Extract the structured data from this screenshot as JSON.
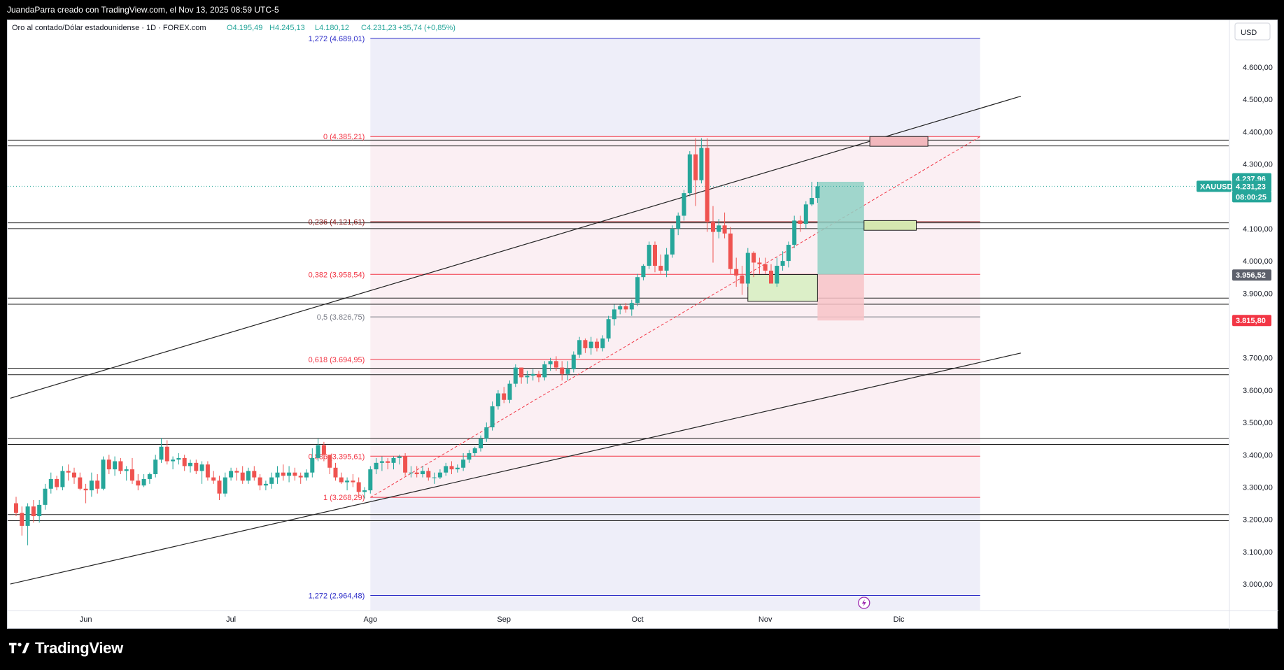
{
  "header": {
    "author_line": "JuandaParra creado con TradingView.com, el Nov 13, 2025 08:59 UTC-5"
  },
  "brand": {
    "name": "TradingView",
    "logo_icon": "tradingview-logo-icon"
  },
  "colors": {
    "up": "#26a69a",
    "down": "#ef5350",
    "fib_red": "#f23645",
    "fib_gray": "#787b86",
    "fib_blue": "#2e2ec8",
    "trend": "#222222",
    "zone_green_fill": "#dcefc8",
    "zone_red_fill": "#f2b8bd",
    "long_target": "#8fd1c4",
    "long_stop": "#f7c3c7"
  },
  "chart_data": {
    "type": "candlestick",
    "symbol": "XAUUSD",
    "legend": {
      "name": "Oro al contado/Dólar estadounidense · 1D · FOREX.com",
      "open": "O4.195,49",
      "high": "H4.245,13",
      "low": "L4.180,12",
      "close": "C4.231,23",
      "change": "+35,74 (+0,85%)"
    },
    "currency": "USD",
    "y_axis": {
      "range": [
        2920,
        4745
      ],
      "ticks": [
        "4.600,00",
        "4.500,00",
        "4.400,00",
        "4.300,00",
        "4.100,00",
        "4.000,00",
        "3.900,00",
        "3.700,00",
        "3.600,00",
        "3.500,00",
        "3.400,00",
        "3.300,00",
        "3.200,00",
        "3.100,00",
        "3.000,00"
      ],
      "tick_values": [
        4600,
        4500,
        4400,
        4300,
        4100,
        4000,
        3900,
        3700,
        3600,
        3500,
        3400,
        3300,
        3200,
        3100,
        3000
      ]
    },
    "x_axis": {
      "labels": [
        "Jun",
        "Jul",
        "Ago",
        "Sep",
        "Oct",
        "Nov",
        "Dic"
      ],
      "label_index": [
        12,
        37,
        61,
        84,
        107,
        129,
        152
      ]
    },
    "price_labels": [
      {
        "text": "4.237,96",
        "value": 4237.96,
        "kind": "up"
      },
      {
        "text": "XAUUSD",
        "value": 4231.23,
        "kind": "symbol"
      },
      {
        "text": "4.231,23",
        "value": 4231.23,
        "kind": "up"
      },
      {
        "text": "08:00:25",
        "value": 4231.23,
        "kind": "timer"
      },
      {
        "text": "3.956,52",
        "value": 3956.52,
        "kind": "gray"
      },
      {
        "text": "3.815,80",
        "value": 3815.8,
        "kind": "down"
      }
    ],
    "fibonacci": [
      {
        "label": "1,272 (4.689,01)",
        "value": 4689.01,
        "color": "blue"
      },
      {
        "label": "0 (4.385,21)",
        "value": 4385.21,
        "color": "red"
      },
      {
        "label": "0,236 (4.121,61)",
        "value": 4121.61,
        "color": "darkred"
      },
      {
        "label": "0,382 (3.958,54)",
        "value": 3958.54,
        "color": "red"
      },
      {
        "label": "0,5 (3.826,75)",
        "value": 3826.75,
        "color": "gray"
      },
      {
        "label": "0,618 (3.694,95)",
        "value": 3694.95,
        "color": "red"
      },
      {
        "label": "0,886 (3.395,61)",
        "value": 3395.61,
        "color": "red"
      },
      {
        "label": "1 (3.268,29)",
        "value": 3268.29,
        "color": "red"
      },
      {
        "label": "1,272 (2.964,48)",
        "value": 2964.48,
        "color": "blue"
      }
    ],
    "horizontal_levels": [
      4374,
      4356,
      4118,
      4100,
      3885,
      3866,
      3668,
      3648,
      3451,
      3432,
      3215,
      3196
    ],
    "trendlines": [
      {
        "from": [
          -1,
          3575
        ],
        "to": [
          173,
          4510
        ]
      },
      {
        "from": [
          -1,
          3000
        ],
        "to": [
          173,
          3715
        ]
      }
    ],
    "ohlc": [
      [
        3250,
        3270,
        3210,
        3220
      ],
      [
        3220,
        3240,
        3150,
        3180
      ],
      [
        3180,
        3250,
        3120,
        3240
      ],
      [
        3240,
        3260,
        3190,
        3210
      ],
      [
        3210,
        3260,
        3190,
        3245
      ],
      [
        3245,
        3310,
        3230,
        3295
      ],
      [
        3295,
        3345,
        3280,
        3325
      ],
      [
        3325,
        3335,
        3290,
        3300
      ],
      [
        3300,
        3365,
        3290,
        3350
      ],
      [
        3350,
        3370,
        3320,
        3345
      ],
      [
        3345,
        3360,
        3310,
        3330
      ],
      [
        3330,
        3345,
        3290,
        3295
      ],
      [
        3295,
        3310,
        3250,
        3290
      ],
      [
        3290,
        3345,
        3270,
        3320
      ],
      [
        3320,
        3340,
        3280,
        3295
      ],
      [
        3295,
        3395,
        3290,
        3385
      ],
      [
        3385,
        3400,
        3340,
        3355
      ],
      [
        3355,
        3395,
        3335,
        3380
      ],
      [
        3380,
        3390,
        3340,
        3350
      ],
      [
        3350,
        3365,
        3320,
        3355
      ],
      [
        3355,
        3390,
        3310,
        3320
      ],
      [
        3320,
        3340,
        3290,
        3305
      ],
      [
        3305,
        3340,
        3300,
        3325
      ],
      [
        3325,
        3345,
        3310,
        3340
      ],
      [
        3340,
        3400,
        3330,
        3385
      ],
      [
        3385,
        3452,
        3375,
        3425
      ],
      [
        3425,
        3445,
        3370,
        3380
      ],
      [
        3380,
        3395,
        3355,
        3385
      ],
      [
        3385,
        3405,
        3370,
        3390
      ],
      [
        3390,
        3400,
        3350,
        3365
      ],
      [
        3365,
        3385,
        3345,
        3375
      ],
      [
        3375,
        3385,
        3340,
        3350
      ],
      [
        3350,
        3380,
        3310,
        3370
      ],
      [
        3370,
        3380,
        3320,
        3330
      ],
      [
        3330,
        3350,
        3310,
        3320
      ],
      [
        3320,
        3335,
        3260,
        3280
      ],
      [
        3280,
        3345,
        3270,
        3330
      ],
      [
        3330,
        3360,
        3320,
        3350
      ],
      [
        3350,
        3360,
        3320,
        3345
      ],
      [
        3345,
        3365,
        3310,
        3320
      ],
      [
        3320,
        3360,
        3310,
        3350
      ],
      [
        3350,
        3365,
        3320,
        3330
      ],
      [
        3330,
        3340,
        3290,
        3305
      ],
      [
        3305,
        3320,
        3290,
        3310
      ],
      [
        3310,
        3345,
        3295,
        3330
      ],
      [
        3330,
        3365,
        3310,
        3345
      ],
      [
        3345,
        3370,
        3320,
        3335
      ],
      [
        3335,
        3365,
        3315,
        3345
      ],
      [
        3345,
        3360,
        3320,
        3335
      ],
      [
        3335,
        3345,
        3310,
        3330
      ],
      [
        3330,
        3355,
        3320,
        3345
      ],
      [
        3345,
        3420,
        3330,
        3390
      ],
      [
        3390,
        3450,
        3380,
        3430
      ],
      [
        3430,
        3440,
        3380,
        3400
      ],
      [
        3400,
        3400,
        3340,
        3360
      ],
      [
        3360,
        3375,
        3320,
        3330
      ],
      [
        3330,
        3345,
        3310,
        3315
      ],
      [
        3315,
        3330,
        3290,
        3320
      ],
      [
        3320,
        3340,
        3300,
        3315
      ],
      [
        3315,
        3330,
        3270,
        3285
      ],
      [
        3285,
        3300,
        3265,
        3290
      ],
      [
        3290,
        3365,
        3280,
        3355
      ],
      [
        3355,
        3390,
        3340,
        3375
      ],
      [
        3375,
        3395,
        3350,
        3380
      ],
      [
        3380,
        3390,
        3355,
        3375
      ],
      [
        3375,
        3395,
        3355,
        3390
      ],
      [
        3390,
        3400,
        3370,
        3395
      ],
      [
        3395,
        3405,
        3335,
        3345
      ],
      [
        3345,
        3365,
        3330,
        3345
      ],
      [
        3345,
        3365,
        3330,
        3340
      ],
      [
        3340,
        3365,
        3330,
        3350
      ],
      [
        3350,
        3360,
        3320,
        3330
      ],
      [
        3330,
        3345,
        3310,
        3330
      ],
      [
        3330,
        3355,
        3325,
        3345
      ],
      [
        3345,
        3375,
        3335,
        3365
      ],
      [
        3365,
        3380,
        3340,
        3355
      ],
      [
        3355,
        3370,
        3345,
        3360
      ],
      [
        3360,
        3405,
        3350,
        3385
      ],
      [
        3385,
        3415,
        3375,
        3405
      ],
      [
        3405,
        3425,
        3395,
        3420
      ],
      [
        3420,
        3460,
        3410,
        3450
      ],
      [
        3450,
        3500,
        3440,
        3485
      ],
      [
        3485,
        3565,
        3475,
        3550
      ],
      [
        3550,
        3600,
        3540,
        3590
      ],
      [
        3590,
        3610,
        3560,
        3570
      ],
      [
        3570,
        3630,
        3560,
        3620
      ],
      [
        3620,
        3680,
        3610,
        3670
      ],
      [
        3670,
        3670,
        3620,
        3640
      ],
      [
        3640,
        3660,
        3620,
        3645
      ],
      [
        3645,
        3665,
        3630,
        3650
      ],
      [
        3650,
        3660,
        3625,
        3640
      ],
      [
        3640,
        3690,
        3630,
        3680
      ],
      [
        3680,
        3700,
        3660,
        3690
      ],
      [
        3690,
        3705,
        3660,
        3670
      ],
      [
        3670,
        3690,
        3630,
        3650
      ],
      [
        3650,
        3690,
        3630,
        3665
      ],
      [
        3665,
        3720,
        3655,
        3710
      ],
      [
        3710,
        3765,
        3700,
        3755
      ],
      [
        3755,
        3760,
        3715,
        3730
      ],
      [
        3730,
        3765,
        3710,
        3750
      ],
      [
        3750,
        3760,
        3720,
        3730
      ],
      [
        3730,
        3770,
        3720,
        3760
      ],
      [
        3760,
        3830,
        3750,
        3820
      ],
      [
        3820,
        3865,
        3800,
        3850
      ],
      [
        3850,
        3865,
        3835,
        3860
      ],
      [
        3860,
        3870,
        3840,
        3850
      ],
      [
        3850,
        3880,
        3830,
        3870
      ],
      [
        3870,
        3960,
        3860,
        3950
      ],
      [
        3950,
        3990,
        3940,
        3985
      ],
      [
        3985,
        4060,
        3975,
        4050
      ],
      [
        4050,
        4060,
        3965,
        3985
      ],
      [
        3985,
        4020,
        3960,
        3970
      ],
      [
        3970,
        4040,
        3950,
        4020
      ],
      [
        4020,
        4110,
        4010,
        4100
      ],
      [
        4100,
        4150,
        4080,
        4140
      ],
      [
        4140,
        4220,
        4125,
        4210
      ],
      [
        4210,
        4340,
        4200,
        4330
      ],
      [
        4330,
        4380,
        4170,
        4250
      ],
      [
        4250,
        4380,
        4240,
        4350
      ],
      [
        4350,
        4380,
        4090,
        4120
      ],
      [
        4120,
        4170,
        3995,
        4090
      ],
      [
        4090,
        4130,
        4070,
        4110
      ],
      [
        4110,
        4150,
        4070,
        4085
      ],
      [
        4085,
        4105,
        3960,
        3975
      ],
      [
        3975,
        4010,
        3920,
        3955
      ],
      [
        3955,
        3985,
        3895,
        3930
      ],
      [
        3930,
        4040,
        3920,
        4025
      ],
      [
        4025,
        4030,
        3950,
        3995
      ],
      [
        3995,
        4010,
        3960,
        3990
      ],
      [
        3990,
        4010,
        3960,
        3970
      ],
      [
        3970,
        3990,
        3930,
        3930
      ],
      [
        3930,
        4010,
        3920,
        3985
      ],
      [
        3985,
        4030,
        3970,
        4000
      ],
      [
        4000,
        4060,
        3980,
        4050
      ],
      [
        4050,
        4140,
        4040,
        4125
      ],
      [
        4125,
        4140,
        4090,
        4115
      ],
      [
        4115,
        4185,
        4100,
        4175
      ],
      [
        4175,
        4245,
        4170,
        4195
      ],
      [
        4195,
        4245,
        4180,
        4231
      ]
    ]
  }
}
